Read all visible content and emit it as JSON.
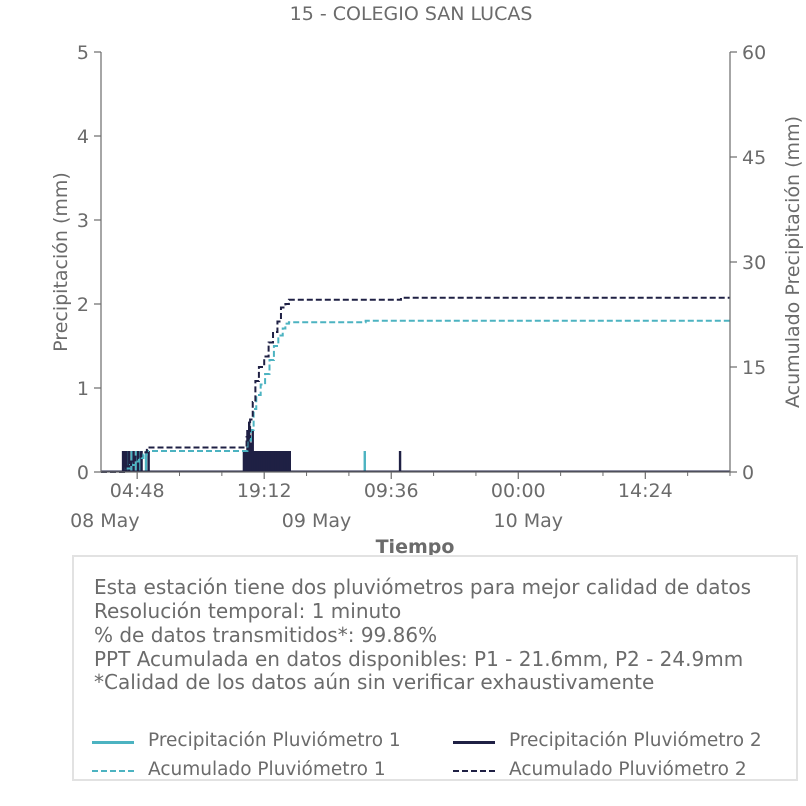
{
  "chart_data": {
    "type": "line",
    "title": "15 - COLEGIO SAN LUCAS",
    "xlabel": "Tiempo",
    "ylabel_left": "Precipitación (mm)",
    "ylabel_right": "Acumulado Precipitación (mm)",
    "ylim_left": [
      0,
      5
    ],
    "ylim_right": [
      0,
      60
    ],
    "yticks_left": [
      "0",
      "1",
      "2",
      "3",
      "4",
      "5"
    ],
    "yticks_right": [
      "0",
      "15",
      "30",
      "45",
      "60"
    ],
    "xtick_time_labels": [
      "04:48",
      "19:12",
      "09:36",
      "00:00",
      "14:24"
    ],
    "xtick_date_labels": [
      "08 May",
      "09 May",
      "10 May"
    ],
    "x_range_hours": [
      0.7,
      72.0
    ],
    "grid": false,
    "series": [
      {
        "name": "Precipitación Pluviómetro 1",
        "axis": "left",
        "color": "#4cb3c1",
        "style": "solid",
        "bars": [
          {
            "t": 3.3,
            "v": 0.25
          },
          {
            "t": 3.5,
            "v": 0.25
          },
          {
            "t": 3.7,
            "v": 0.25
          },
          {
            "t": 4.2,
            "v": 0.25
          },
          {
            "t": 4.7,
            "v": 0.25
          },
          {
            "t": 5.1,
            "v": 0.25
          },
          {
            "t": 5.8,
            "v": 0.25
          },
          {
            "t": 17.0,
            "v": 0.25
          },
          {
            "t": 17.3,
            "v": 0.25
          },
          {
            "t": 17.6,
            "v": 0.25
          },
          {
            "t": 17.9,
            "v": 0.25
          },
          {
            "t": 18.2,
            "v": 0.25
          },
          {
            "t": 18.5,
            "v": 0.25
          },
          {
            "t": 18.8,
            "v": 0.25
          },
          {
            "t": 19.1,
            "v": 0.25
          },
          {
            "t": 19.4,
            "v": 0.25
          },
          {
            "t": 19.7,
            "v": 0.25
          },
          {
            "t": 20.0,
            "v": 0.25
          },
          {
            "t": 20.3,
            "v": 0.25
          },
          {
            "t": 20.6,
            "v": 0.25
          },
          {
            "t": 20.9,
            "v": 0.25
          },
          {
            "t": 21.2,
            "v": 0.25
          },
          {
            "t": 21.5,
            "v": 0.25
          },
          {
            "t": 30.6,
            "v": 0.25
          }
        ]
      },
      {
        "name": "Precipitación Pluviómetro 2",
        "axis": "left",
        "color": "#1f2044",
        "style": "solid",
        "bars": [
          {
            "t": 3.2,
            "v": 0.25
          },
          {
            "t": 3.4,
            "v": 0.25
          },
          {
            "t": 3.6,
            "v": 0.25
          },
          {
            "t": 3.9,
            "v": 0.25
          },
          {
            "t": 4.4,
            "v": 0.25
          },
          {
            "t": 4.9,
            "v": 0.25
          },
          {
            "t": 5.3,
            "v": 0.25
          },
          {
            "t": 6.1,
            "v": 0.25
          },
          {
            "t": 16.9,
            "v": 0.25
          },
          {
            "t": 17.1,
            "v": 0.25
          },
          {
            "t": 17.3,
            "v": 0.5
          },
          {
            "t": 17.5,
            "v": 0.6
          },
          {
            "t": 17.7,
            "v": 0.35
          },
          {
            "t": 17.9,
            "v": 0.5
          },
          {
            "t": 18.1,
            "v": 0.25
          },
          {
            "t": 18.3,
            "v": 0.25
          },
          {
            "t": 18.5,
            "v": 0.25
          },
          {
            "t": 18.7,
            "v": 0.25
          },
          {
            "t": 18.9,
            "v": 0.25
          },
          {
            "t": 19.1,
            "v": 0.25
          },
          {
            "t": 19.3,
            "v": 0.25
          },
          {
            "t": 19.5,
            "v": 0.25
          },
          {
            "t": 19.7,
            "v": 0.25
          },
          {
            "t": 19.9,
            "v": 0.25
          },
          {
            "t": 20.1,
            "v": 0.25
          },
          {
            "t": 20.3,
            "v": 0.25
          },
          {
            "t": 20.5,
            "v": 0.25
          },
          {
            "t": 20.7,
            "v": 0.25
          },
          {
            "t": 20.9,
            "v": 0.25
          },
          {
            "t": 21.1,
            "v": 0.25
          },
          {
            "t": 21.3,
            "v": 0.25
          },
          {
            "t": 21.5,
            "v": 0.25
          },
          {
            "t": 21.7,
            "v": 0.25
          },
          {
            "t": 21.9,
            "v": 0.25
          },
          {
            "t": 22.1,
            "v": 0.25
          },
          {
            "t": 34.6,
            "v": 0.25
          }
        ]
      },
      {
        "name": "Acumulado Pluviómetro 1",
        "axis": "right",
        "color": "#4cb3c1",
        "style": "dashed",
        "points": [
          [
            0.7,
            0
          ],
          [
            3.2,
            0
          ],
          [
            3.5,
            0.5
          ],
          [
            4.0,
            1.0
          ],
          [
            4.6,
            1.5
          ],
          [
            5.0,
            2.0
          ],
          [
            5.5,
            2.5
          ],
          [
            5.9,
            3.0
          ],
          [
            16.9,
            3.0
          ],
          [
            17.3,
            4.5
          ],
          [
            17.7,
            6.0
          ],
          [
            18.0,
            9.0
          ],
          [
            18.3,
            11.0
          ],
          [
            18.8,
            12.5
          ],
          [
            19.3,
            14.0
          ],
          [
            19.8,
            16.0
          ],
          [
            20.3,
            18.0
          ],
          [
            20.8,
            19.5
          ],
          [
            21.3,
            20.5
          ],
          [
            21.6,
            21.2
          ],
          [
            22.0,
            21.4
          ],
          [
            30.5,
            21.4
          ],
          [
            30.7,
            21.6
          ],
          [
            72.0,
            21.6
          ]
        ]
      },
      {
        "name": "Acumulado Pluviómetro 2",
        "axis": "right",
        "color": "#1f2044",
        "style": "dashed",
        "points": [
          [
            0.7,
            0
          ],
          [
            3.1,
            0
          ],
          [
            3.5,
            0.8
          ],
          [
            4.1,
            1.5
          ],
          [
            4.6,
            2.2
          ],
          [
            5.2,
            2.8
          ],
          [
            5.9,
            3.5
          ],
          [
            16.8,
            3.5
          ],
          [
            17.2,
            5.0
          ],
          [
            17.6,
            7.5
          ],
          [
            17.9,
            10.0
          ],
          [
            18.2,
            13.0
          ],
          [
            18.6,
            15.0
          ],
          [
            19.2,
            16.5
          ],
          [
            19.7,
            18.5
          ],
          [
            20.2,
            20.0
          ],
          [
            20.7,
            21.5
          ],
          [
            21.1,
            23.5
          ],
          [
            21.6,
            24.0
          ],
          [
            22.0,
            24.6
          ],
          [
            34.5,
            24.6
          ],
          [
            34.7,
            24.9
          ],
          [
            72.0,
            24.9
          ]
        ]
      }
    ]
  },
  "info": {
    "line1": "Esta estación tiene dos pluviómetros para mejor calidad de datos",
    "line2": "Resolución temporal: 1 minuto",
    "line3": "% de datos transmitidos*: 99.86%",
    "line4": "PPT Acumulada en datos disponibles: P1 - 21.6mm, P2 - 24.9mm",
    "line5": "*Calidad de los datos aún sin verificar exhaustivamente"
  },
  "legend": {
    "p1_precip": "Precipitación Pluviómetro 1",
    "p2_precip": "Precipitación Pluviómetro 2",
    "p1_acum": "Acumulado Pluviómetro 1",
    "p2_acum": "Acumulado Pluviómetro 2"
  },
  "colors": {
    "pluv1": "#4cb3c1",
    "pluv2": "#1f2044",
    "text": "#6b6b6b",
    "axis": "#6b6b6b"
  }
}
